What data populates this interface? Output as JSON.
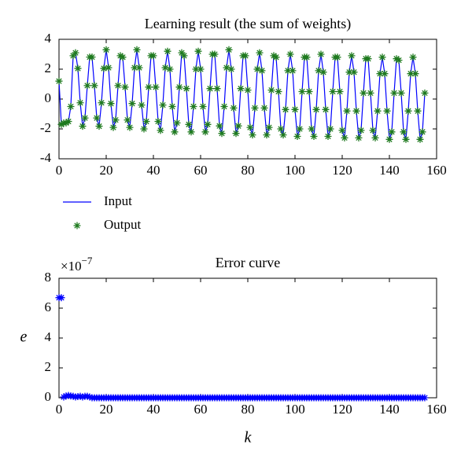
{
  "chart_data": [
    {
      "type": "line",
      "title": "Learning result (the sum of weights)",
      "x": [
        0,
        1,
        2,
        3,
        4,
        5,
        6,
        7,
        8,
        9,
        10,
        11,
        12,
        13,
        14,
        15,
        16,
        17,
        18,
        19,
        20,
        21,
        22,
        23,
        24,
        25,
        26,
        27,
        28,
        29,
        30,
        31,
        32,
        33,
        34,
        35,
        36,
        37,
        38,
        39,
        40,
        41,
        42,
        43,
        44,
        45,
        46,
        47,
        48,
        49,
        50,
        51,
        52,
        53,
        54,
        55,
        56,
        57,
        58,
        59,
        60,
        61,
        62,
        63,
        64,
        65,
        66,
        67,
        68,
        69,
        70,
        71,
        72,
        73,
        74,
        75,
        76,
        77,
        78,
        79,
        80,
        81,
        82,
        83,
        84,
        85,
        86,
        87,
        88,
        89,
        90,
        91,
        92,
        93,
        94,
        95,
        96,
        97,
        98,
        99,
        100,
        101,
        102,
        103,
        104,
        105,
        106,
        107,
        108,
        109,
        110,
        111,
        112,
        113,
        114,
        115,
        116,
        117,
        118,
        119,
        120,
        121,
        122,
        123,
        124,
        125,
        126,
        127,
        128,
        129,
        130,
        131,
        132,
        133,
        134,
        135,
        136,
        137,
        138,
        139,
        140,
        141,
        142,
        143,
        144,
        145,
        146,
        147,
        148,
        149,
        150,
        151,
        152,
        153,
        154,
        155
      ],
      "xlim": [
        0,
        160
      ],
      "xticks": [
        0,
        20,
        40,
        60,
        80,
        100,
        120,
        140,
        160
      ],
      "ylim": [
        -4,
        4
      ],
      "yticks": [
        -4,
        -2,
        0,
        2,
        4
      ],
      "legend": "below",
      "series": [
        {
          "name": "Input",
          "color": "#0000ff",
          "style": "line",
          "values": [
            1.2,
            -1.7,
            -1.6,
            -1.6,
            -1.5,
            -0.5,
            2.9,
            3.1,
            2.05,
            -0.25,
            -1.82,
            -1.27,
            0.9,
            2.81,
            2.81,
            0.9,
            -1.27,
            -1.82,
            -0.25,
            2.05,
            3.3,
            2.1,
            -0.3,
            -1.9,
            -1.4,
            0.9,
            2.9,
            2.8,
            0.8,
            -1.4,
            -1.9,
            -0.3,
            2.1,
            3.3,
            2.1,
            -0.4,
            -2.0,
            -1.5,
            0.8,
            2.9,
            2.9,
            0.8,
            -1.5,
            -2.1,
            -0.4,
            2.1,
            3.2,
            2.0,
            -0.5,
            -2.2,
            -1.6,
            0.8,
            3.1,
            2.9,
            0.7,
            -1.7,
            -2.2,
            -0.5,
            2.0,
            3.2,
            2.0,
            -0.5,
            -2.2,
            -1.7,
            0.7,
            3.0,
            3.0,
            0.7,
            -1.8,
            -2.3,
            -0.5,
            2.1,
            3.3,
            2.0,
            -0.6,
            -2.3,
            -1.8,
            0.7,
            2.9,
            2.9,
            0.6,
            -1.9,
            -2.4,
            -0.6,
            2.0,
            3.1,
            1.9,
            -0.6,
            -2.4,
            -1.9,
            0.6,
            2.9,
            2.8,
            0.5,
            -2.0,
            -2.4,
            -0.7,
            1.9,
            3.0,
            1.9,
            -0.7,
            -2.5,
            -2.0,
            0.5,
            2.8,
            2.8,
            0.5,
            -2.0,
            -2.5,
            -0.7,
            1.9,
            3.0,
            1.8,
            -0.7,
            -2.5,
            -2.0,
            0.5,
            2.8,
            2.8,
            0.5,
            -2.1,
            -2.6,
            -0.8,
            1.8,
            2.9,
            1.8,
            -0.8,
            -2.6,
            -2.1,
            0.4,
            2.7,
            2.7,
            0.4,
            -2.1,
            -2.6,
            -0.8,
            1.7,
            2.8,
            1.7,
            -0.8,
            -2.7,
            -2.2,
            0.4,
            2.7,
            2.6,
            0.4,
            -2.2,
            -2.7,
            -0.8,
            1.7,
            2.8,
            1.7,
            -0.8,
            -2.7,
            -2.2,
            0.4
          ]
        },
        {
          "name": "Output",
          "color": "#1e7a1e",
          "style": "marker",
          "values": [
            1.2,
            -1.7,
            -1.6,
            -1.6,
            -1.5,
            -0.5,
            2.9,
            3.1,
            2.05,
            -0.25,
            -1.82,
            -1.27,
            0.9,
            2.81,
            2.81,
            0.9,
            -1.27,
            -1.82,
            -0.25,
            2.05,
            3.3,
            2.1,
            -0.3,
            -1.9,
            -1.4,
            0.9,
            2.9,
            2.8,
            0.8,
            -1.4,
            -1.9,
            -0.3,
            2.1,
            3.3,
            2.1,
            -0.4,
            -2.0,
            -1.5,
            0.8,
            2.9,
            2.9,
            0.8,
            -1.5,
            -2.1,
            -0.4,
            2.1,
            3.2,
            2.0,
            -0.5,
            -2.2,
            -1.6,
            0.8,
            3.1,
            2.9,
            0.7,
            -1.7,
            -2.2,
            -0.5,
            2.0,
            3.2,
            2.0,
            -0.5,
            -2.2,
            -1.7,
            0.7,
            3.0,
            3.0,
            0.7,
            -1.8,
            -2.3,
            -0.5,
            2.1,
            3.3,
            2.0,
            -0.6,
            -2.3,
            -1.8,
            0.7,
            2.9,
            2.9,
            0.6,
            -1.9,
            -2.4,
            -0.6,
            2.0,
            3.1,
            1.9,
            -0.6,
            -2.4,
            -1.9,
            0.6,
            2.9,
            2.8,
            0.5,
            -2.0,
            -2.4,
            -0.7,
            1.9,
            3.0,
            1.9,
            -0.7,
            -2.5,
            -2.0,
            0.5,
            2.8,
            2.8,
            0.5,
            -2.0,
            -2.5,
            -0.7,
            1.9,
            3.0,
            1.8,
            -0.7,
            -2.5,
            -2.0,
            0.5,
            2.8,
            2.8,
            0.5,
            -2.1,
            -2.6,
            -0.8,
            1.8,
            2.9,
            1.8,
            -0.8,
            -2.6,
            -2.1,
            0.4,
            2.7,
            2.7,
            0.4,
            -2.1,
            -2.6,
            -0.8,
            1.7,
            2.8,
            1.7,
            -0.8,
            -2.7,
            -2.2,
            0.4,
            2.7,
            2.6,
            0.4,
            -2.2,
            -2.7,
            -0.8,
            1.7,
            2.8,
            1.7,
            -0.8,
            -2.7,
            -2.2,
            0.4
          ]
        }
      ]
    },
    {
      "type": "line",
      "title": "Error curve",
      "xlabel": "k",
      "ylabel": "e",
      "y_multiplier": {
        "base": "×10",
        "exponent": "−7"
      },
      "x": [
        0,
        1,
        2,
        3,
        4,
        5,
        6,
        7,
        8,
        9,
        10,
        11,
        12,
        13,
        14,
        15,
        16,
        17,
        18,
        19,
        20,
        21,
        22,
        23,
        24,
        25,
        26,
        27,
        28,
        29,
        30,
        31,
        32,
        33,
        34,
        35,
        36,
        37,
        38,
        39,
        40,
        41,
        42,
        43,
        44,
        45,
        46,
        47,
        48,
        49,
        50,
        51,
        52,
        53,
        54,
        55,
        56,
        57,
        58,
        59,
        60,
        61,
        62,
        63,
        64,
        65,
        66,
        67,
        68,
        69,
        70,
        71,
        72,
        73,
        74,
        75,
        76,
        77,
        78,
        79,
        80,
        81,
        82,
        83,
        84,
        85,
        86,
        87,
        88,
        89,
        90,
        91,
        92,
        93,
        94,
        95,
        96,
        97,
        98,
        99,
        100,
        101,
        102,
        103,
        104,
        105,
        106,
        107,
        108,
        109,
        110,
        111,
        112,
        113,
        114,
        115,
        116,
        117,
        118,
        119,
        120,
        121,
        122,
        123,
        124,
        125,
        126,
        127,
        128,
        129,
        130,
        131,
        132,
        133,
        134,
        135,
        136,
        137,
        138,
        139,
        140,
        141,
        142,
        143,
        144,
        145,
        146,
        147,
        148,
        149,
        150,
        151,
        152,
        153,
        154,
        155
      ],
      "xlim": [
        0,
        160
      ],
      "xticks": [
        0,
        20,
        40,
        60,
        80,
        100,
        120,
        140,
        160
      ],
      "ylim": [
        0,
        8
      ],
      "yticks": [
        0,
        2,
        4,
        6,
        8
      ],
      "series": [
        {
          "color": "#0000ff",
          "style": "marker",
          "values": [
            6.7,
            6.7,
            0.05,
            0.12,
            0.15,
            0.12,
            0.1,
            0.05,
            0.08,
            0.1,
            0.05,
            0.1,
            0.1,
            0.05,
            0,
            0,
            0,
            0,
            0,
            0,
            0,
            0,
            0,
            0,
            0,
            0,
            0,
            0,
            0,
            0,
            0,
            0,
            0,
            0,
            0,
            0,
            0,
            0,
            0,
            0,
            0,
            0,
            0,
            0,
            0,
            0,
            0,
            0,
            0,
            0,
            0,
            0,
            0,
            0,
            0,
            0,
            0,
            0,
            0,
            0,
            0,
            0,
            0,
            0,
            0,
            0,
            0,
            0,
            0,
            0,
            0,
            0,
            0,
            0,
            0,
            0,
            0,
            0,
            0,
            0,
            0,
            0,
            0,
            0,
            0,
            0,
            0,
            0,
            0,
            0,
            0,
            0,
            0,
            0,
            0,
            0,
            0,
            0,
            0,
            0,
            0,
            0,
            0,
            0,
            0,
            0,
            0,
            0,
            0,
            0,
            0,
            0,
            0,
            0,
            0,
            0,
            0,
            0,
            0,
            0,
            0,
            0,
            0,
            0,
            0,
            0,
            0,
            0,
            0,
            0,
            0,
            0,
            0,
            0,
            0,
            0,
            0,
            0,
            0,
            0,
            0,
            0,
            0,
            0,
            0,
            0,
            0,
            0,
            0,
            0,
            0,
            0,
            0,
            0,
            0,
            0
          ]
        }
      ]
    }
  ]
}
